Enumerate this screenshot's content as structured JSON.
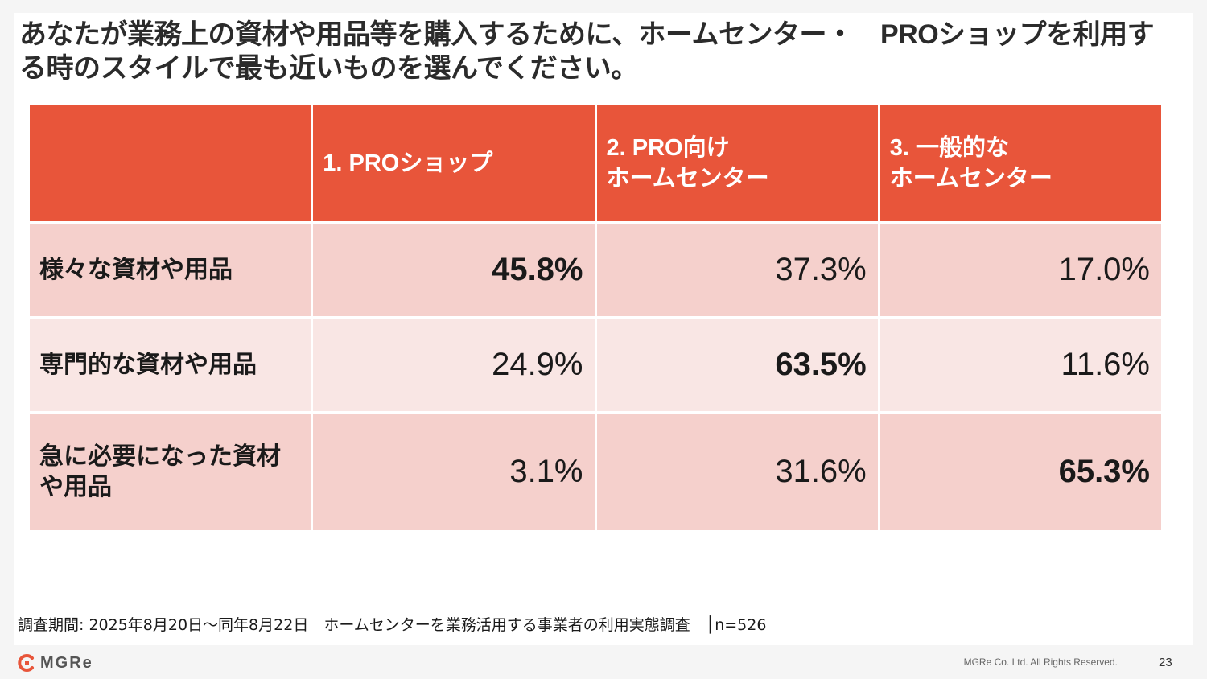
{
  "slide": {
    "title": "あなたが業務上の資材や用品等を購入するために、ホームセンター・　PROショップを利用する時のスタイルで最も近いものを選んでください。",
    "footnote": "調査期間: 2025年8月20日～同年8月22日　ホームセンターを業務活用する事業者の利用実態調査　│n=526",
    "brand": "MGRe",
    "copyright": "MGRe Co. Ltd. All Rights Reserved.",
    "page_number": "23"
  },
  "colors": {
    "header_bg": "#e8553a",
    "row_bg_a": "#f5d0cc",
    "row_bg_b": "#f9e6e4",
    "brand_red": "#e8553a"
  },
  "chart_data": {
    "type": "table",
    "columns": [
      {
        "line1": "1. PROショップ",
        "line2": ""
      },
      {
        "line1": "2.  PRO向け",
        "line2": "ホームセンター"
      },
      {
        "line1": "3.  一般的な",
        "line2": "ホームセンター"
      }
    ],
    "rows": [
      {
        "label": "様々な資材や用品",
        "values": [
          "45.8%",
          "37.3%",
          "17.0%"
        ],
        "highlight": 0
      },
      {
        "label": "専門的な資材や用品",
        "values": [
          "24.9%",
          "63.5%",
          "11.6%"
        ],
        "highlight": 1
      },
      {
        "label": "急に必要になった資材や用品",
        "values": [
          "3.1%",
          "31.6%",
          "65.3%"
        ],
        "highlight": 2
      }
    ]
  }
}
